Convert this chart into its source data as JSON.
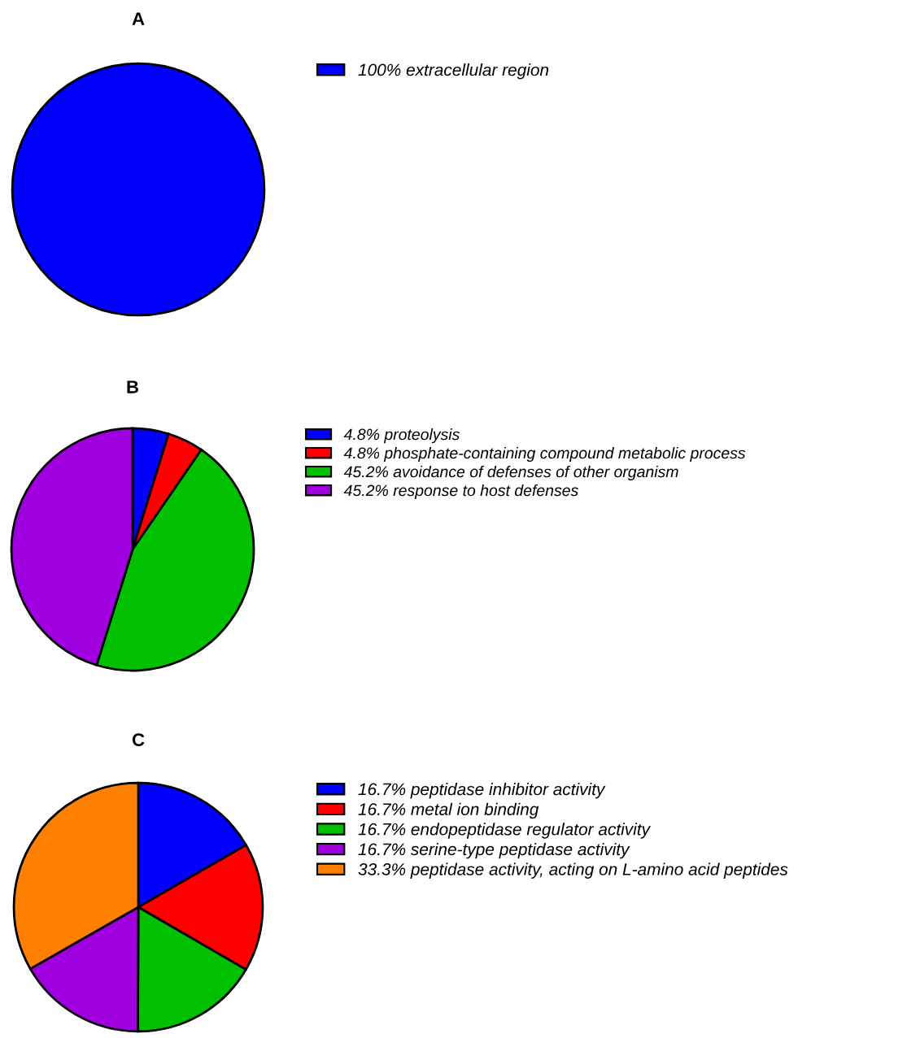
{
  "chart_data": [
    {
      "type": "pie",
      "title": "A",
      "legend": "right",
      "categories": [
        "100% extracellular region"
      ],
      "values": [
        100
      ],
      "colors": [
        "#0000ff"
      ]
    },
    {
      "type": "pie",
      "title": "B",
      "legend": "right",
      "categories": [
        "4.8% proteolysis",
        "4.8% phosphate-containing compound metabolic process",
        "45.2% avoidance of defenses of other organism",
        "45.2% response to host defenses"
      ],
      "values": [
        4.8,
        4.8,
        45.2,
        45.2
      ],
      "colors": [
        "#0000ff",
        "#ff0000",
        "#00c000",
        "#a000e0"
      ]
    },
    {
      "type": "pie",
      "title": "C",
      "legend": "right",
      "categories": [
        "16.7% peptidase inhibitor activity",
        "16.7% metal ion binding",
        "16.7% endopeptidase regulator activity",
        "16.7% serine-type peptidase activity",
        "33.3% peptidase activity, acting on L-amino acid peptides"
      ],
      "values": [
        16.7,
        16.7,
        16.7,
        16.7,
        33.3
      ],
      "colors": [
        "#0000ff",
        "#ff0000",
        "#00c000",
        "#a000e0",
        "#ff8000"
      ]
    }
  ]
}
